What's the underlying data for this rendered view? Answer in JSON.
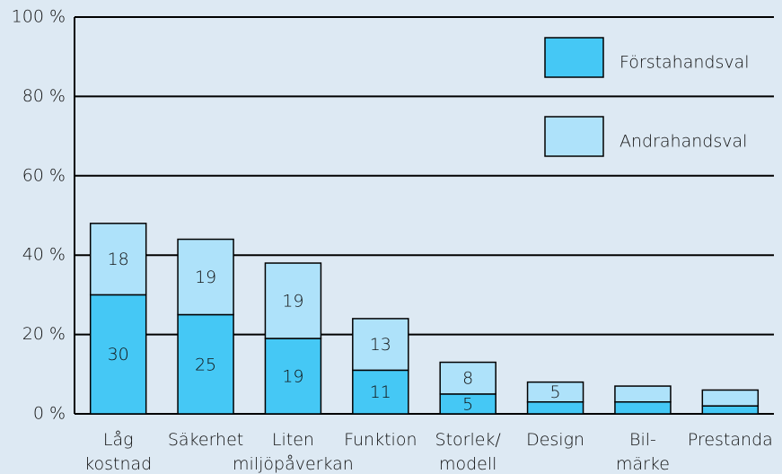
{
  "chart_data": {
    "type": "stacked_bar",
    "categories": [
      "Låg\nkostnad",
      "Säkerhet",
      "Liten\nmiljöpåverkan",
      "Funktion",
      "Storlek/\nmodell",
      "Design",
      "Bil-\nmärke",
      "Prestanda"
    ],
    "series": [
      {
        "name": "Förstahandsval",
        "color": "#45c8f5",
        "values": [
          30,
          25,
          19,
          11,
          5,
          3,
          3,
          2
        ],
        "value_labels": [
          "30",
          "25",
          "19",
          "11",
          "5",
          null,
          null,
          null
        ]
      },
      {
        "name": "Andrahandsval",
        "color": "#aee2fa",
        "values": [
          18,
          19,
          19,
          13,
          8,
          5,
          4,
          4
        ],
        "value_labels": [
          "18",
          "19",
          "19",
          "13",
          "8",
          "5",
          null,
          null
        ]
      }
    ],
    "ylim": [
      0,
      100
    ],
    "yticks": [
      {
        "value": 0,
        "label": "0 %"
      },
      {
        "value": 20,
        "label": "20 %"
      },
      {
        "value": 40,
        "label": "40 %"
      },
      {
        "value": 60,
        "label": "60 %"
      },
      {
        "value": 80,
        "label": "80 %"
      },
      {
        "value": 100,
        "label": "100 %"
      }
    ],
    "grid": true,
    "legend": "upper right"
  }
}
